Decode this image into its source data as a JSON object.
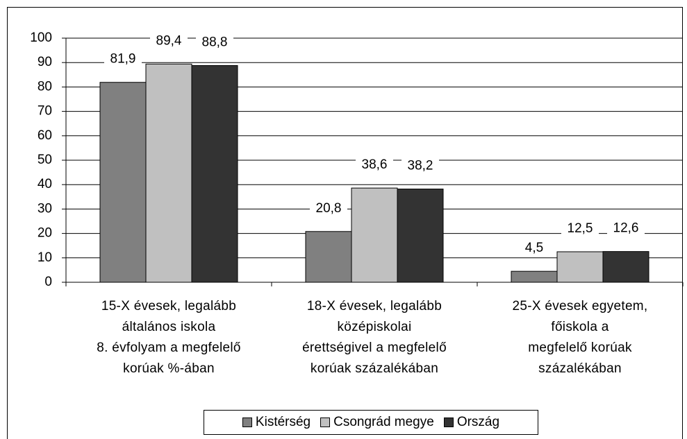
{
  "chart_data": {
    "type": "bar",
    "categories": [
      "15-X évesek, legalább\náltalános iskola\n8. évfolyam a megfelelő\nkorúak %-ában",
      "18-X évesek, legalább\nközépiskolai\nérettségivel a megfelelő\nkorúak százalékában",
      "25-X évesek egyetem,\nfőiskola a\nmegfelelő korúak\nszázalékában"
    ],
    "series": [
      {
        "name": "Kistérség",
        "color": "#808080",
        "values": [
          81.9,
          20.8,
          4.5
        ],
        "value_labels": [
          "81,9",
          "20,8",
          "4,5"
        ]
      },
      {
        "name": "Csongrád megye",
        "color": "#c0c0c0",
        "values": [
          89.4,
          38.6,
          12.5
        ],
        "value_labels": [
          "89,4",
          "38,6",
          "12,5"
        ]
      },
      {
        "name": "Ország",
        "color": "#333333",
        "values": [
          88.8,
          38.2,
          12.6
        ],
        "value_labels": [
          "88,8",
          "38,2",
          "12,6"
        ]
      }
    ],
    "ylim": [
      0,
      100
    ],
    "yticks": [
      0,
      10,
      20,
      30,
      40,
      50,
      60,
      70,
      80,
      90,
      100
    ],
    "grid": true
  }
}
